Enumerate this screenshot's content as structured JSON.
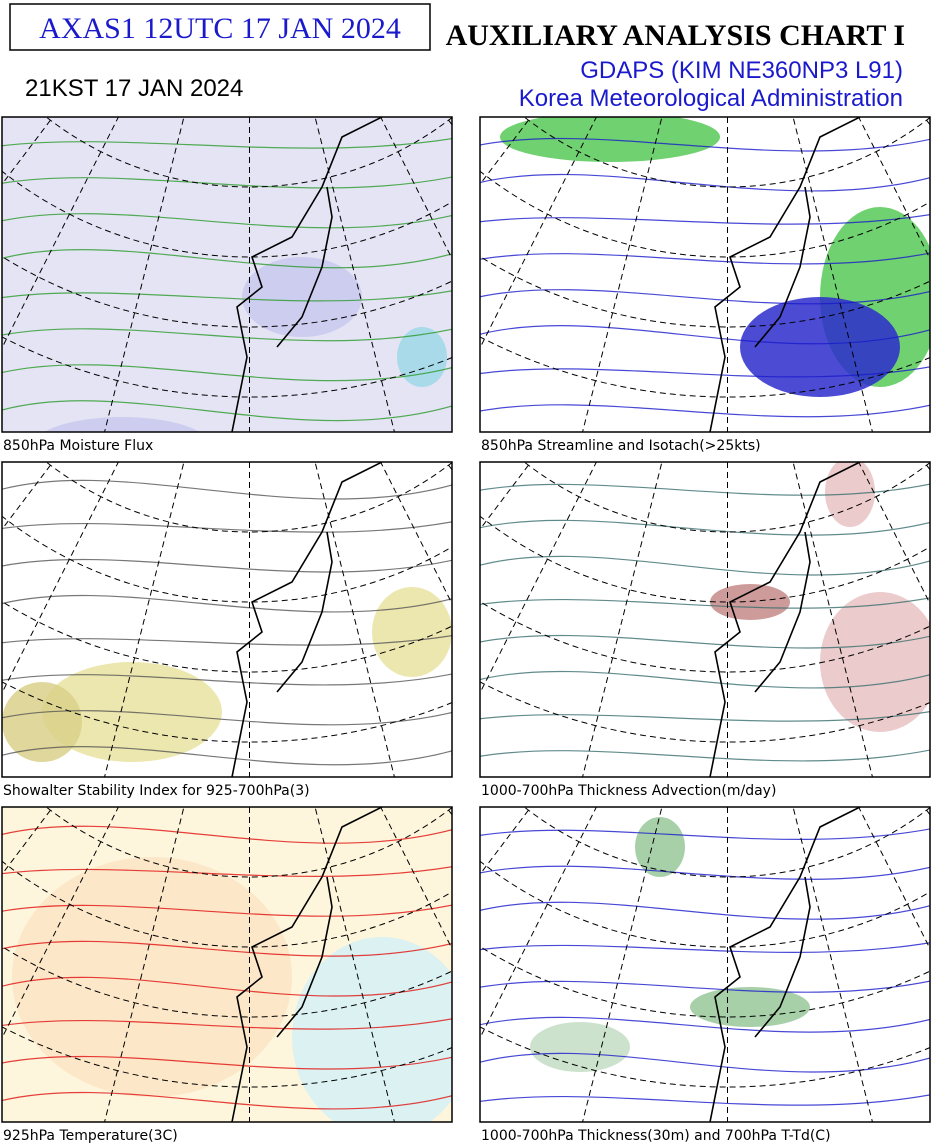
{
  "header": {
    "code": "AXAS1  12UTC 17 JAN 2024",
    "local_time": "21KST 17 JAN 2024",
    "title": "AUXILIARY ANALYSIS CHART  I",
    "model": "GDAPS (KIM NE360NP3 L91)",
    "agency": "Korea Meteorological Administration"
  },
  "panels": [
    {
      "caption": "850hPa Moisture Flux"
    },
    {
      "caption": "850hPa Streamline and Isotach(>25kts)"
    },
    {
      "caption": "Showalter Stability Index for 925-700hPa(3)"
    },
    {
      "caption": "1000-700hPa Thickness Advection(m/day)"
    },
    {
      "caption": "925hPa Temperature(3C)"
    },
    {
      "caption": "1000-700hPa Thickness(30m) and 700hPa T-Td(C)"
    }
  ]
}
